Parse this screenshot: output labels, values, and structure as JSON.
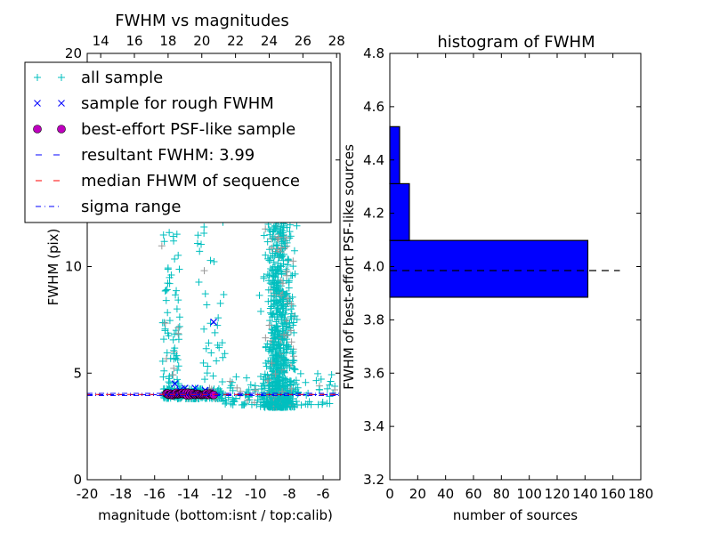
{
  "chart_data": [
    {
      "type": "scatter",
      "title": "FWHM vs magnitudes",
      "xlabel": "magnitude (bottom:isnt / top:calib)",
      "ylabel": "FWHM (pix)",
      "xlim": [
        -20,
        -5
      ],
      "ylim": [
        0,
        20
      ],
      "xticks": [
        "-20",
        "-18",
        "-16",
        "-14",
        "-12",
        "-10",
        "-8",
        "-6"
      ],
      "xtick_values": [
        -20,
        -18,
        -16,
        -14,
        -12,
        -10,
        -8,
        -6
      ],
      "top_xticks": [
        "14",
        "16",
        "18",
        "20",
        "22",
        "24",
        "26",
        "28"
      ],
      "top_xtick_values": [
        14,
        16,
        18,
        20,
        22,
        24,
        26,
        28
      ],
      "top_offset": 33.2,
      "yticks": [
        "0",
        "5",
        "10",
        "15",
        "20"
      ],
      "ytick_values": [
        0,
        5,
        10,
        15,
        20
      ],
      "legend": {
        "placement": "top-left",
        "entries": [
          {
            "label": "all sample",
            "marker": "+",
            "color": "#00bfbf"
          },
          {
            "label": "sample for rough FWHM",
            "marker": "x",
            "color": "#0000ff"
          },
          {
            "label": "best-effort PSF-like sample",
            "marker": "o",
            "color": "#bf00bf"
          },
          {
            "label": "resultant FWHM: 3.99",
            "marker": "dashed",
            "color": "#0000ff"
          },
          {
            "label": "median FHWM of sequence",
            "marker": "dashed",
            "color": "#ff0000"
          },
          {
            "label": "sigma range",
            "marker": "dashdot",
            "color": "#0000ff"
          }
        ]
      },
      "series": [
        {
          "name": "all sample",
          "clusters": [
            {
              "x": [
                -10.5,
                -5.2
              ],
              "y": [
                3.3,
                20
              ],
              "n": 900
            },
            {
              "x": [
                -15.5,
                -12
              ],
              "y": [
                3.8,
                4.3
              ],
              "n": 200
            },
            {
              "x": [
                -15.6,
                -14.5
              ],
              "y": [
                4.5,
                12
              ],
              "n": 70
            },
            {
              "x": [
                -13.5,
                -11.8
              ],
              "y": [
                4,
                12.5
              ],
              "n": 40
            },
            {
              "x": [
                -12,
                -5.2
              ],
              "y": [
                3.5,
                5
              ],
              "n": 120
            }
          ]
        },
        {
          "name": "sample for rough FWHM",
          "points": [
            [
              -14.8,
              4.5
            ],
            [
              -14.2,
              4.3
            ],
            [
              -13.6,
              4.3
            ],
            [
              -13,
              4.2
            ],
            [
              -14.5,
              4.2
            ],
            [
              -15.2,
              4.1
            ],
            [
              -12.7,
              4.1
            ],
            [
              -12.5,
              7.4
            ]
          ]
        },
        {
          "name": "best-effort PSF-like sample",
          "x_range": [
            -15.3,
            -12.5
          ],
          "y": 4.02,
          "n": 40
        },
        {
          "name": "resultant FWHM",
          "y": 3.99
        },
        {
          "name": "median FHWM of sequence",
          "y": 4.0
        },
        {
          "name": "sigma range",
          "y": [
            3.95,
            4.05
          ]
        }
      ]
    },
    {
      "type": "bar",
      "orientation": "horizontal",
      "title": "histogram of FWHM",
      "xlabel": "number of sources",
      "ylabel": "FWHM of best-effort PSF-like sources",
      "xlim": [
        0,
        180
      ],
      "ylim": [
        3.2,
        4.8
      ],
      "xticks": [
        "0",
        "20",
        "40",
        "60",
        "80",
        "100",
        "120",
        "140",
        "160",
        "180"
      ],
      "xtick_values": [
        0,
        20,
        40,
        60,
        80,
        100,
        120,
        140,
        160,
        180
      ],
      "yticks": [
        "3.2",
        "3.4",
        "3.6",
        "3.8",
        "4.0",
        "4.2",
        "4.4",
        "4.6",
        "4.8"
      ],
      "ytick_values": [
        3.2,
        3.4,
        3.6,
        3.8,
        4.0,
        4.2,
        4.4,
        4.6,
        4.8
      ],
      "bins": [
        [
          3.885,
          4.098
        ],
        [
          4.098,
          4.311
        ],
        [
          4.311,
          4.525
        ]
      ],
      "values": [
        142,
        14,
        7
      ],
      "color": "#0000ff",
      "reference_line": {
        "y": 3.985,
        "x_extent": 165,
        "style": "dashed"
      }
    }
  ]
}
